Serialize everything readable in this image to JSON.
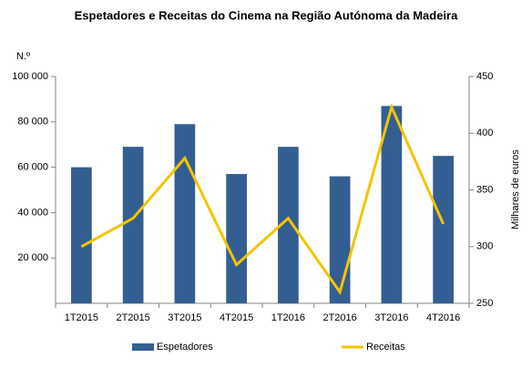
{
  "chart_data": {
    "type": "bar_line",
    "title": "Espetadores e Receitas do Cinema na Região Autónoma da Madeira",
    "y_label": "N.º",
    "y2_label": "Milhares de euros",
    "categories": [
      "1T2015",
      "2T2015",
      "3T2015",
      "4T2015",
      "1T2016",
      "2T2016",
      "3T2016",
      "4T2016"
    ],
    "series": [
      {
        "name": "Espetadores",
        "type": "bar",
        "color": "#335e91",
        "values": [
          60000,
          69000,
          79000,
          57000,
          69000,
          56000,
          87000,
          65000
        ]
      },
      {
        "name": "Receitas",
        "type": "line",
        "axis": "y2",
        "color": "#f5c400",
        "values": [
          300,
          325,
          378,
          284,
          325,
          260,
          423,
          320
        ]
      }
    ],
    "ylim": [
      0,
      100000
    ],
    "yticks": [
      {
        "value": 20000,
        "label": "20 000"
      },
      {
        "value": 40000,
        "label": "40 000"
      },
      {
        "value": 60000,
        "label": "60 000"
      },
      {
        "value": 80000,
        "label": "80 000"
      },
      {
        "value": 100000,
        "label": "100 000"
      }
    ],
    "y2lim": [
      250,
      450
    ],
    "y2ticks": [
      250,
      300,
      350,
      400,
      450
    ],
    "legend": "bottom"
  }
}
